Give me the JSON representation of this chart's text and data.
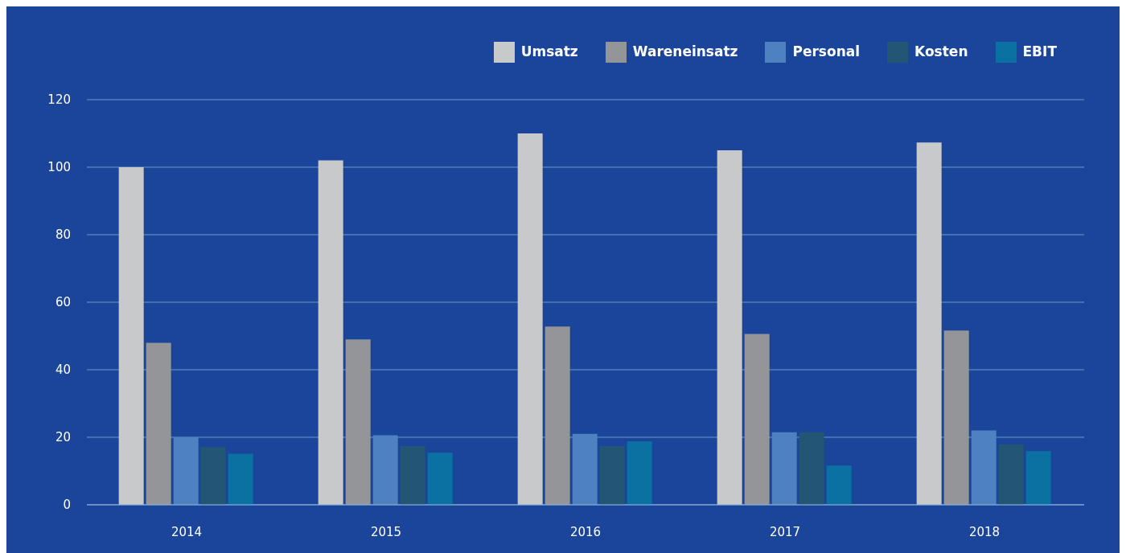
{
  "chart_data": {
    "type": "bar",
    "categories": [
      "2014",
      "2015",
      "2016",
      "2017",
      "2018"
    ],
    "series": [
      {
        "name": "Umsatz",
        "color": "#c8c9cb",
        "values": [
          100,
          102,
          110,
          105,
          107.3
        ]
      },
      {
        "name": "Wareneinsatz",
        "color": "#949599",
        "values": [
          48,
          49,
          52.8,
          50.6,
          51.6
        ]
      },
      {
        "name": "Personal",
        "color": "#4d81bf",
        "values": [
          20,
          20.6,
          21,
          21.5,
          22
        ]
      },
      {
        "name": "Kosten",
        "color": "#235574",
        "values": [
          17.1,
          17.4,
          17.4,
          21.5,
          17.9
        ]
      },
      {
        "name": "EBIT",
        "color": "#0b71a3",
        "values": [
          15.1,
          15.4,
          18.8,
          11.6,
          15.9
        ]
      }
    ],
    "ylim": [
      0,
      120
    ],
    "yticks": [
      0,
      20,
      40,
      60,
      80,
      100,
      120
    ],
    "grid": "y",
    "legend": "top right"
  }
}
